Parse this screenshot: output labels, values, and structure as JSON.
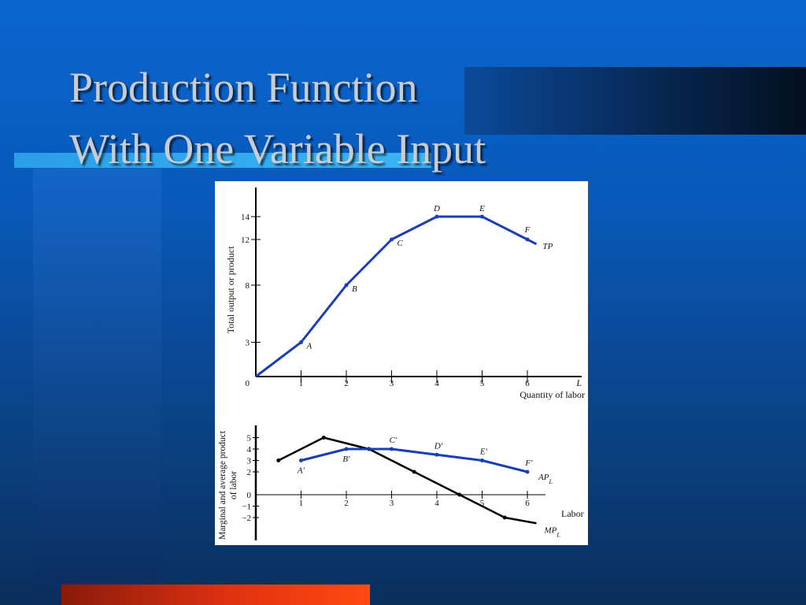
{
  "slide": {
    "title_line1": "Production Function",
    "title_line2": "With One Variable Input"
  },
  "colors": {
    "tp_curve": "#1a3fb5",
    "ap_curve": "#1a3fb5",
    "mp_curve": "#000000"
  },
  "chart_data": [
    {
      "type": "line",
      "ylabel": "Total output or product",
      "xlabel": "Quantity of labor",
      "x_axis_symbol": "L",
      "origin_label": "0",
      "xlim": [
        0,
        7
      ],
      "ylim": [
        0,
        16
      ],
      "x_ticks": [
        "1",
        "2",
        "3",
        "4",
        "5",
        "6"
      ],
      "y_ticks": [
        "3",
        "8",
        "12",
        "14"
      ],
      "series": [
        {
          "name": "TP",
          "x": [
            0,
            1,
            2,
            3,
            4,
            5,
            6,
            6.2
          ],
          "y": [
            0,
            3,
            8,
            12,
            14,
            14,
            12,
            11.6
          ]
        }
      ],
      "points": [
        {
          "label": "A",
          "x": 1,
          "y": 3
        },
        {
          "label": "B",
          "x": 2,
          "y": 8
        },
        {
          "label": "C",
          "x": 3,
          "y": 12
        },
        {
          "label": "D",
          "x": 4,
          "y": 14
        },
        {
          "label": "E",
          "x": 5,
          "y": 14
        },
        {
          "label": "F",
          "x": 6,
          "y": 12
        }
      ]
    },
    {
      "type": "line",
      "ylabel_line1": "Marginal and average product",
      "ylabel_line2": "of labor",
      "xlabel": "Labor",
      "zero_label": "0",
      "xlim": [
        0,
        7
      ],
      "ylim": [
        -3,
        6
      ],
      "x_ticks": [
        "1",
        "2",
        "3",
        "4",
        "5",
        "6"
      ],
      "y_ticks": [
        "5",
        "4",
        "3",
        "2",
        "0",
        "−1",
        "−2"
      ],
      "series": [
        {
          "name": "AP",
          "subscript": "L",
          "x": [
            1,
            2,
            3,
            4,
            5,
            6
          ],
          "y": [
            3,
            4,
            4,
            3.5,
            3,
            2
          ]
        },
        {
          "name": "MP",
          "subscript": "L",
          "x": [
            0.5,
            1.5,
            2.5,
            3.5,
            4.5,
            5.5,
            6.2
          ],
          "y": [
            3,
            5,
            4,
            2,
            0,
            -2,
            -2.5
          ]
        }
      ],
      "points": [
        {
          "label": "A′",
          "x": 1,
          "y": 3
        },
        {
          "label": "B′",
          "x": 2,
          "y": 4
        },
        {
          "label": "C′",
          "x": 3,
          "y": 4
        },
        {
          "label": "D′",
          "x": 4,
          "y": 3.5
        },
        {
          "label": "E′",
          "x": 5,
          "y": 3
        },
        {
          "label": "F′",
          "x": 6,
          "y": 2
        }
      ]
    }
  ]
}
